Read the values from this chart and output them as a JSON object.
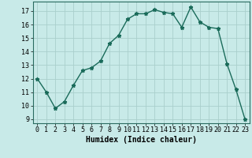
{
  "x": [
    0,
    1,
    2,
    3,
    4,
    5,
    6,
    7,
    8,
    9,
    10,
    11,
    12,
    13,
    14,
    15,
    16,
    17,
    18,
    19,
    20,
    21,
    22,
    23
  ],
  "y": [
    12,
    11,
    9.8,
    10.3,
    11.5,
    12.6,
    12.8,
    13.3,
    14.6,
    15.2,
    16.4,
    16.8,
    16.8,
    17.1,
    16.9,
    16.8,
    15.8,
    17.3,
    16.2,
    15.8,
    15.7,
    13.1,
    11.2,
    9.0
  ],
  "line_color": "#1a6b5a",
  "marker": "*",
  "marker_size": 3.5,
  "bg_color": "#c8eae8",
  "grid_color": "#aacfcc",
  "xlabel": "Humidex (Indice chaleur)",
  "ylim": [
    8.7,
    17.7
  ],
  "xlim": [
    -0.5,
    23.5
  ],
  "yticks": [
    9,
    10,
    11,
    12,
    13,
    14,
    15,
    16,
    17
  ],
  "xticks": [
    0,
    1,
    2,
    3,
    4,
    5,
    6,
    7,
    8,
    9,
    10,
    11,
    12,
    13,
    14,
    15,
    16,
    17,
    18,
    19,
    20,
    21,
    22,
    23
  ],
  "label_fontsize": 7,
  "tick_fontsize": 6
}
